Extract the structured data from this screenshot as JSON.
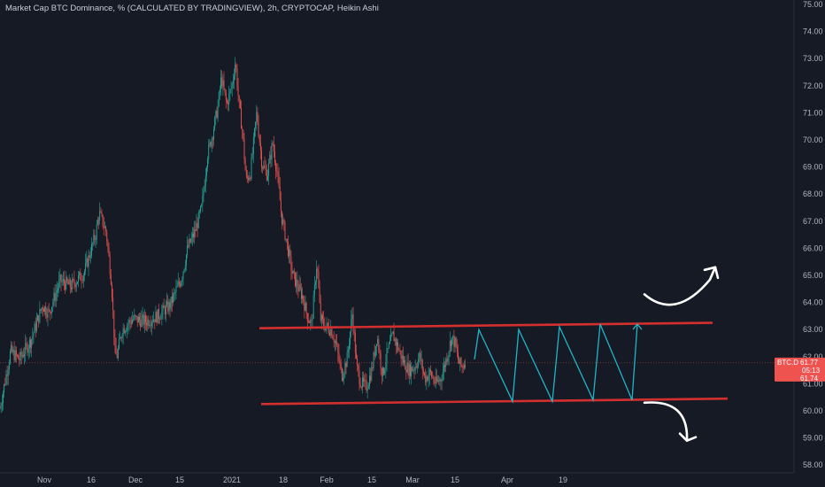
{
  "header": {
    "title": "Market Cap BTC Dominance, % (CALCULATED BY TRADINGVIEW), 2h, CRYPTOCAP, Heikin Ashi"
  },
  "colors": {
    "background": "#161a25",
    "up": "#26a69a",
    "down": "#ef5350",
    "trendline": "#d32f2f",
    "zigzag": "#1fb5c9",
    "arrow": "#ffffff",
    "badge": "#ef5350"
  },
  "price_badge": {
    "symbol": "BTC.D",
    "value": "61.77",
    "countdown": "05:13",
    "low_value": "61.74"
  },
  "chart_data": {
    "type": "candlestick",
    "title": "Market Cap BTC Dominance, % (CALCULATED BY TRADINGVIEW), 2h, CRYPTOCAP, Heikin Ashi",
    "ylim": [
      57.6,
      75.0
    ],
    "yticks": [
      "75.00",
      "74.00",
      "73.00",
      "72.00",
      "71.00",
      "70.00",
      "69.00",
      "68.00",
      "67.00",
      "66.00",
      "65.00",
      "64.00",
      "63.00",
      "62.00",
      "61.00",
      "60.00",
      "59.00",
      "58.00"
    ],
    "xticks": [
      "Nov",
      "16",
      "Dec",
      "15",
      "2021",
      "18",
      "Feb",
      "15",
      "Mar",
      "15",
      "Apr",
      "19"
    ],
    "grid": false,
    "last_price": 61.77,
    "trend_points": [
      [
        0,
        60.1
      ],
      [
        12,
        62.2
      ],
      [
        22,
        61.9
      ],
      [
        35,
        62.6
      ],
      [
        48,
        63.9
      ],
      [
        55,
        63.6
      ],
      [
        68,
        64.8
      ],
      [
        80,
        64.6
      ],
      [
        95,
        65.1
      ],
      [
        108,
        66.5
      ],
      [
        112,
        67.3
      ],
      [
        120,
        66.6
      ],
      [
        126,
        64.7
      ],
      [
        130,
        62.1
      ],
      [
        132,
        62.0
      ],
      [
        138,
        63.0
      ],
      [
        150,
        63.4
      ],
      [
        165,
        63.3
      ],
      [
        178,
        63.5
      ],
      [
        192,
        63.9
      ],
      [
        205,
        64.9
      ],
      [
        212,
        66.0
      ],
      [
        220,
        66.6
      ],
      [
        228,
        67.5
      ],
      [
        234,
        69.4
      ],
      [
        240,
        70.2
      ],
      [
        246,
        71.2
      ],
      [
        250,
        72.3
      ],
      [
        256,
        71.3
      ],
      [
        262,
        72.0
      ],
      [
        266,
        72.9
      ],
      [
        270,
        71.3
      ],
      [
        274,
        70.3
      ],
      [
        278,
        68.5
      ],
      [
        283,
        68.8
      ],
      [
        290,
        71.0
      ],
      [
        296,
        69.1
      ],
      [
        302,
        68.7
      ],
      [
        308,
        69.9
      ],
      [
        313,
        68.8
      ],
      [
        318,
        67.2
      ],
      [
        324,
        66.2
      ],
      [
        330,
        65.1
      ],
      [
        336,
        64.6
      ],
      [
        342,
        64.2
      ],
      [
        347,
        63.5
      ],
      [
        352,
        63.2
      ],
      [
        358,
        65.5
      ],
      [
        362,
        63.4
      ],
      [
        368,
        63.1
      ],
      [
        374,
        63.0
      ],
      [
        380,
        62.4
      ],
      [
        386,
        61.3
      ],
      [
        392,
        61.9
      ],
      [
        398,
        63.6
      ],
      [
        403,
        61.6
      ],
      [
        408,
        61.0
      ],
      [
        414,
        60.9
      ],
      [
        420,
        61.5
      ],
      [
        426,
        62.8
      ],
      [
        432,
        61.3
      ],
      [
        438,
        62.2
      ],
      [
        444,
        62.8
      ],
      [
        450,
        62.3
      ],
      [
        456,
        61.8
      ],
      [
        462,
        61.5
      ],
      [
        468,
        61.6
      ],
      [
        474,
        62.0
      ],
      [
        480,
        61.2
      ],
      [
        486,
        61.4
      ],
      [
        492,
        61.0
      ],
      [
        498,
        61.2
      ],
      [
        504,
        61.9
      ],
      [
        510,
        62.7
      ],
      [
        514,
        62.5
      ],
      [
        518,
        61.8
      ],
      [
        522,
        61.6
      ],
      [
        526,
        61.9
      ]
    ],
    "annotations": {
      "resistance": {
        "from": [
          293,
          63.05
        ],
        "to": [
          805,
          63.25
        ]
      },
      "support": {
        "from": [
          295,
          60.25
        ],
        "to": [
          822,
          60.45
        ]
      },
      "zigzag": [
        [
          536,
          61.9
        ],
        [
          541,
          63.0
        ],
        [
          579,
          60.35
        ],
        [
          586,
          63.0
        ],
        [
          624,
          60.35
        ],
        [
          632,
          63.1
        ],
        [
          670,
          60.4
        ],
        [
          678,
          63.2
        ],
        [
          714,
          60.4
        ],
        [
          720,
          63.2
        ]
      ],
      "arrow_up": {
        "from": [
          728,
          64.3
        ],
        "to": [
          808,
          65.3
        ]
      },
      "arrow_down": {
        "from": [
          728,
          60.3
        ],
        "to": [
          776,
          58.9
        ]
      }
    }
  }
}
